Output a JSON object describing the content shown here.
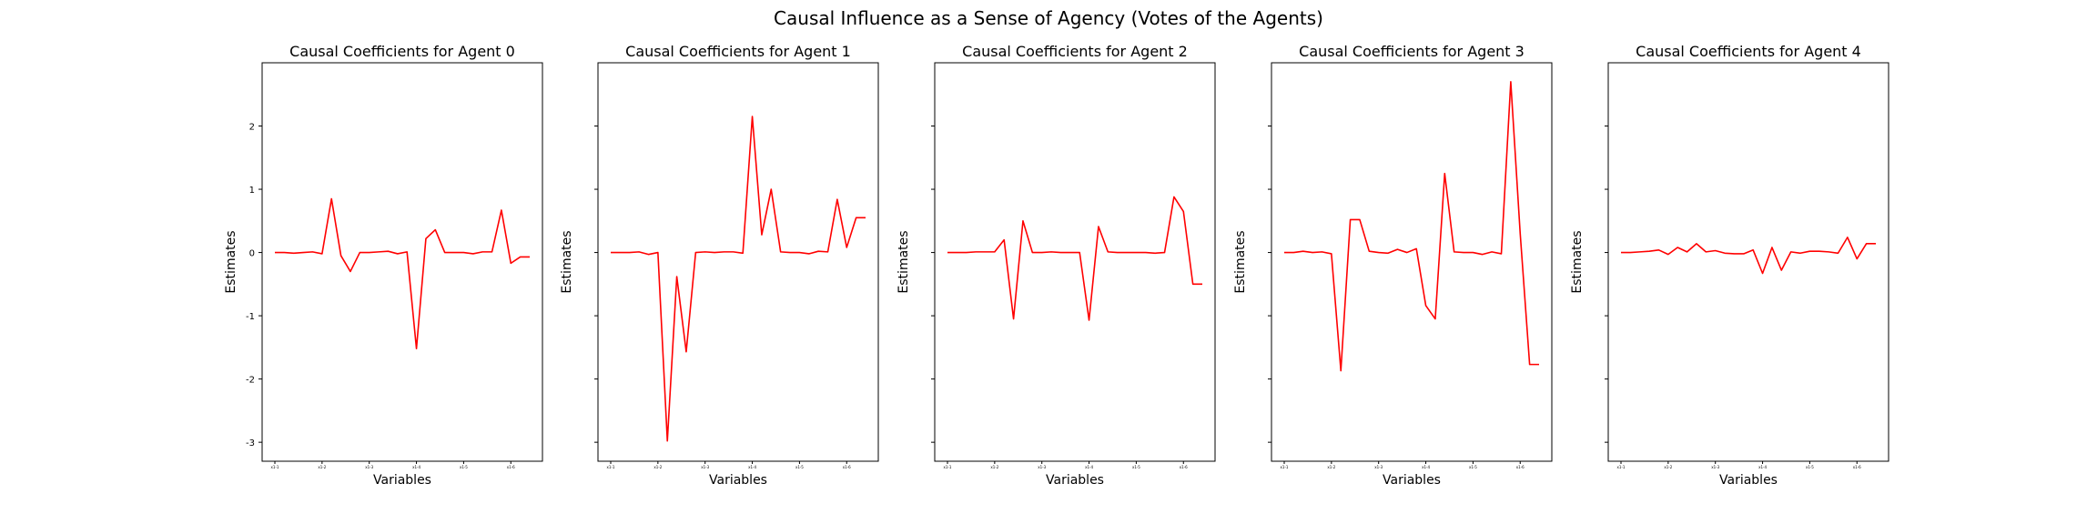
{
  "figure": {
    "suptitle": "Causal Influence as a Sense of Agency (Votes of the Agents)",
    "line_color": "#ff0000"
  },
  "chart_data": [
    {
      "type": "line",
      "title": "Causal Coefficients for Agent 0",
      "xlabel": "Variables",
      "ylabel": "Estimates",
      "ylim": [
        -3.3,
        3.0
      ],
      "yticks": [
        -3,
        -2,
        -1,
        0,
        1,
        2
      ],
      "xtick_positions": [
        0,
        5,
        10,
        15,
        20,
        25
      ],
      "xtick_labels": [
        "x1-1",
        "x1-2",
        "x1-3",
        "x1-4",
        "x1-5",
        "x1-6"
      ],
      "x_count": 28,
      "show_ytick_labels": true,
      "series": [
        {
          "values": [
            0,
            0,
            -0.01,
            0,
            0.01,
            -0.02,
            0.85,
            -0.05,
            -0.3,
            0,
            0,
            0.01,
            0.02,
            -0.02,
            0.01,
            -1.52,
            0.22,
            0.36,
            0,
            0,
            0,
            -0.02,
            0.01,
            0.01,
            0.67,
            -0.17,
            -0.07,
            -0.07
          ]
        }
      ]
    },
    {
      "type": "line",
      "title": "Causal Coefficients for Agent 1",
      "xlabel": "Variables",
      "ylabel": "Estimates",
      "ylim": [
        -3.3,
        3.0
      ],
      "yticks": [
        -3,
        -2,
        -1,
        0,
        1,
        2
      ],
      "xtick_positions": [
        0,
        5,
        10,
        15,
        20,
        25
      ],
      "xtick_labels": [
        "x1-1",
        "x1-2",
        "x1-3",
        "x1-4",
        "x1-5",
        "x1-6"
      ],
      "x_count": 28,
      "show_ytick_labels": false,
      "series": [
        {
          "values": [
            0,
            0,
            0,
            0.01,
            -0.03,
            0,
            -2.98,
            -0.38,
            -1.57,
            0,
            0.01,
            0,
            0.01,
            0.01,
            -0.01,
            2.15,
            0.28,
            1.0,
            0.01,
            0,
            0,
            -0.02,
            0.02,
            0.01,
            0.84,
            0.08,
            0.55,
            0.55
          ]
        }
      ]
    },
    {
      "type": "line",
      "title": "Causal Coefficients for Agent 2",
      "xlabel": "Variables",
      "ylabel": "Estimates",
      "ylim": [
        -3.3,
        3.0
      ],
      "yticks": [
        -3,
        -2,
        -1,
        0,
        1,
        2
      ],
      "xtick_positions": [
        0,
        5,
        10,
        15,
        20,
        25
      ],
      "xtick_labels": [
        "x1-1",
        "x1-2",
        "x1-3",
        "x1-4",
        "x1-5",
        "x1-6"
      ],
      "x_count": 28,
      "show_ytick_labels": false,
      "series": [
        {
          "values": [
            0,
            0,
            0,
            0.01,
            0.01,
            0.01,
            0.2,
            -1.05,
            0.5,
            0,
            0,
            0.01,
            0,
            0,
            0,
            -1.07,
            0.41,
            0.01,
            0,
            0,
            0,
            0,
            -0.01,
            0,
            0.88,
            0.65,
            -0.5,
            -0.5
          ]
        }
      ]
    },
    {
      "type": "line",
      "title": "Causal Coefficients for Agent 3",
      "xlabel": "Variables",
      "ylabel": "Estimates",
      "ylim": [
        -3.3,
        3.0
      ],
      "yticks": [
        -3,
        -2,
        -1,
        0,
        1,
        2
      ],
      "xtick_positions": [
        0,
        5,
        10,
        15,
        20,
        25
      ],
      "xtick_labels": [
        "x1-1",
        "x1-2",
        "x1-3",
        "x1-4",
        "x1-5",
        "x1-6"
      ],
      "x_count": 28,
      "show_ytick_labels": false,
      "series": [
        {
          "values": [
            0,
            0,
            0.02,
            0,
            0.01,
            -0.02,
            -1.87,
            0.52,
            0.52,
            0.02,
            0,
            -0.01,
            0.05,
            0,
            0.06,
            -0.84,
            -1.05,
            1.25,
            0.01,
            0,
            0,
            -0.03,
            0.01,
            -0.02,
            2.7,
            0.3,
            -1.77,
            -1.77
          ]
        }
      ]
    },
    {
      "type": "line",
      "title": "Causal Coefficients for Agent 4",
      "xlabel": "Variables",
      "ylabel": "Estimates",
      "ylim": [
        -3.3,
        3.0
      ],
      "yticks": [
        -3,
        -2,
        -1,
        0,
        1,
        2
      ],
      "xtick_positions": [
        0,
        5,
        10,
        15,
        20,
        25
      ],
      "xtick_labels": [
        "x1-1",
        "x1-2",
        "x1-3",
        "x1-4",
        "x1-5",
        "x1-6"
      ],
      "x_count": 28,
      "show_ytick_labels": false,
      "series": [
        {
          "values": [
            0,
            0,
            0.01,
            0.02,
            0.04,
            -0.03,
            0.08,
            0.01,
            0.14,
            0.01,
            0.03,
            -0.01,
            -0.02,
            -0.02,
            0.04,
            -0.33,
            0.08,
            -0.28,
            0.01,
            -0.01,
            0.02,
            0.02,
            0.01,
            -0.01,
            0.24,
            -0.1,
            0.14,
            0.14
          ]
        }
      ]
    }
  ]
}
